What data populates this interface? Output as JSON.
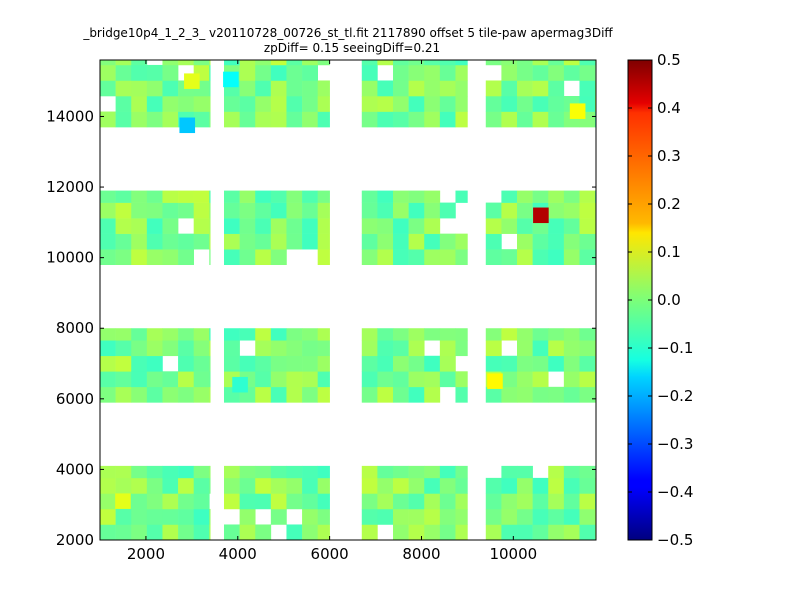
{
  "chart_data": {
    "type": "heatmap",
    "title": "_bridge10p4_1_2_3_ v20110728_00726_st_tl.fit 2117890 offset 5 tile-paw apermag3Diff",
    "subtitle": "zpDiff= 0.15 seeingDiff=0.21",
    "xlabel": "",
    "ylabel": "",
    "xlim": [
      1000,
      11800
    ],
    "ylim": [
      2000,
      15600
    ],
    "xticks": [
      "2000",
      "4000",
      "6000",
      "8000",
      "10000"
    ],
    "yticks": [
      "2000",
      "4000",
      "6000",
      "8000",
      "10000",
      "12000",
      "14000"
    ],
    "colorbar": {
      "range": [
        -0.5,
        0.5
      ],
      "ticks": [
        "0.5",
        "0.4",
        "0.3",
        "0.2",
        "0.1",
        "0.0",
        "−0.1",
        "−0.2",
        "−0.3",
        "−0.4",
        "−0.5"
      ],
      "colormap": "jet"
    },
    "cell_size": [
      340,
      440
    ],
    "tile_columns_x_ranges": [
      [
        1000,
        3400
      ],
      [
        3700,
        6000
      ],
      [
        6700,
        9000
      ],
      [
        9400,
        11800
      ]
    ],
    "tile_rows_y_ranges": [
      [
        2000,
        4100
      ],
      [
        5900,
        8000
      ],
      [
        9800,
        11900
      ],
      [
        13700,
        15600
      ]
    ],
    "typical_value": 0.0,
    "outliers": [
      {
        "x": 10600,
        "y": 11200,
        "value": 0.45
      },
      {
        "x": 2900,
        "y": 13750,
        "value": -0.18
      },
      {
        "x": 3850,
        "y": 15050,
        "value": -0.12
      },
      {
        "x": 11400,
        "y": 14150,
        "value": 0.12
      },
      {
        "x": 9600,
        "y": 6500,
        "value": 0.13
      },
      {
        "x": 1500,
        "y": 3100,
        "value": 0.1
      },
      {
        "x": 3000,
        "y": 15000,
        "value": 0.1
      },
      {
        "x": 4050,
        "y": 6400,
        "value": -0.08
      }
    ]
  }
}
